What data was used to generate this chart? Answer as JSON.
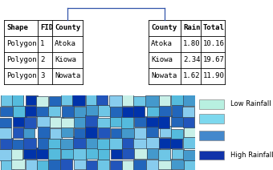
{
  "table1_headers": [
    "Shape",
    "FID",
    "County"
  ],
  "table1_rows": [
    [
      "Polygon",
      "1",
      "Atoka"
    ],
    [
      "Polygon",
      "2",
      "Kiowa"
    ],
    [
      "Polygon",
      "3",
      "Nowata"
    ]
  ],
  "table2_headers": [
    "County",
    "Rain",
    "Total"
  ],
  "table2_rows": [
    [
      "Atoka",
      "1.80",
      "10.16"
    ],
    [
      "Kiowa",
      "2.34",
      "19.67"
    ],
    [
      "Nowata",
      "1.62",
      "11.90"
    ]
  ],
  "legend_labels": [
    "Low Rainfall",
    "",
    "",
    "High Rainfall"
  ],
  "legend_colors": [
    "#b8f0e0",
    "#7dd8ee",
    "#4488cc",
    "#1133aa"
  ],
  "background_color": "#ffffff",
  "join_line_color": "#3355aa",
  "table_font_size": 6.5,
  "header_font_weight": "bold",
  "map_colors": [
    "#c8f0e8",
    "#88ccee",
    "#4499cc",
    "#2266bb",
    "#0033aa",
    "#55bbdd",
    "#6ec6e6",
    "#2255bb"
  ],
  "map_seed": 42
}
